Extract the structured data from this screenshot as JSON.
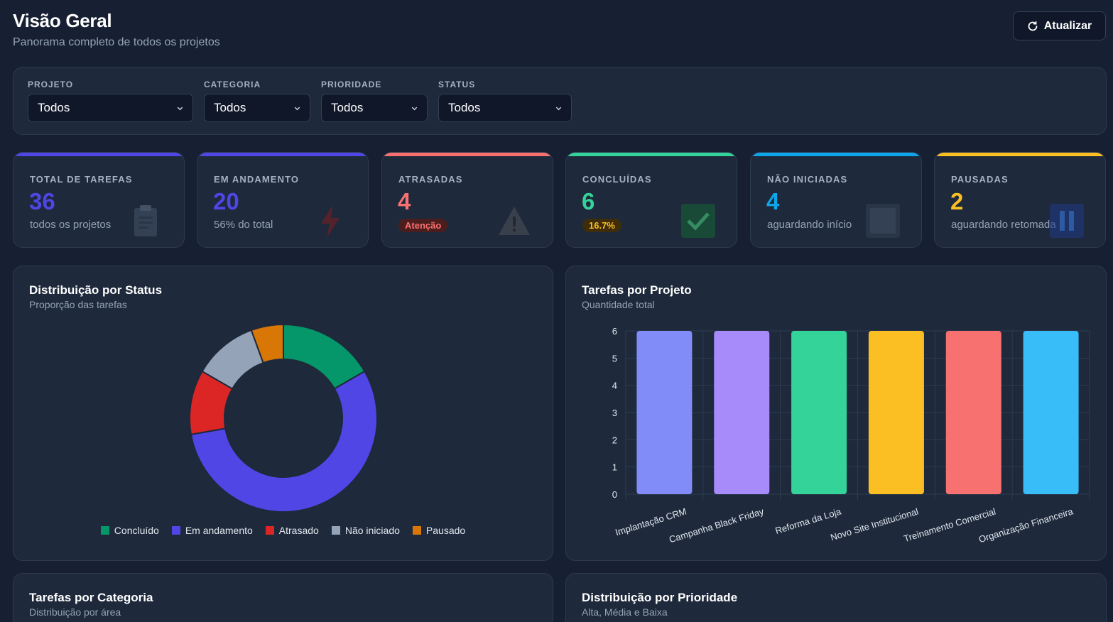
{
  "header": {
    "title": "Visão Geral",
    "subtitle": "Panorama completo de todos os projetos",
    "refresh_label": "Atualizar"
  },
  "filters": {
    "project": {
      "label": "PROJETO",
      "value": "Todos"
    },
    "category": {
      "label": "CATEGORIA",
      "value": "Todos"
    },
    "priority": {
      "label": "PRIORIDADE",
      "value": "Todos"
    },
    "status": {
      "label": "STATUS",
      "value": "Todos"
    }
  },
  "stats": [
    {
      "label": "TOTAL DE TAREFAS",
      "value": "36",
      "sub": "todos os projetos",
      "color": "#4f46e5",
      "icon": "clipboard-icon"
    },
    {
      "label": "EM ANDAMENTO",
      "value": "20",
      "sub": "56% do total",
      "color": "#4f46e5",
      "icon": "lightning-icon"
    },
    {
      "label": "ATRASADAS",
      "value": "4",
      "badge": "Atenção",
      "color": "#f87171",
      "icon": "warning-icon"
    },
    {
      "label": "CONCLUÍDAS",
      "value": "6",
      "badge": "16.7%",
      "color": "#34d399",
      "icon": "check-icon"
    },
    {
      "label": "NÃO INICIADAS",
      "value": "4",
      "sub": "aguardando início",
      "color": "#0ea5e9",
      "icon": "square-icon"
    },
    {
      "label": "PAUSADAS",
      "value": "2",
      "sub": "aguardando retomada",
      "color": "#fbbf24",
      "icon": "pause-icon"
    }
  ],
  "status_panel": {
    "title": "Distribuição por Status",
    "subtitle": "Proporção das tarefas"
  },
  "project_panel": {
    "title": "Tarefas por Projeto",
    "subtitle": "Quantidade total"
  },
  "category_panel": {
    "title": "Tarefas por Categoria",
    "subtitle": "Distribuição por área"
  },
  "priority_panel": {
    "title": "Distribuição por Prioridade",
    "subtitle": "Alta, Média e Baixa"
  },
  "chart_data": [
    {
      "type": "pie",
      "variant": "doughnut",
      "labels": [
        "Concluído",
        "Em andamento",
        "Atrasado",
        "Não iniciado",
        "Pausado"
      ],
      "values": [
        6,
        20,
        4,
        4,
        2
      ],
      "colors": [
        "#059669",
        "#4f46e5",
        "#dc2626",
        "#94a3b8",
        "#d97706"
      ],
      "legend": "bottom"
    },
    {
      "type": "bar",
      "categories": [
        "Implantação CRM",
        "Campanha Black Friday",
        "Reforma da Loja",
        "Novo Site Institucional",
        "Treinamento Comercial",
        "Organização Financeira"
      ],
      "values": [
        6,
        6,
        6,
        6,
        6,
        6
      ],
      "colors": [
        "#818cf8",
        "#a78bfa",
        "#34d399",
        "#fbbf24",
        "#f87171",
        "#38bdf8"
      ],
      "ylim": [
        0,
        6
      ],
      "yticks": [
        0,
        1,
        2,
        3,
        4,
        5,
        6
      ],
      "grid": true
    }
  ]
}
